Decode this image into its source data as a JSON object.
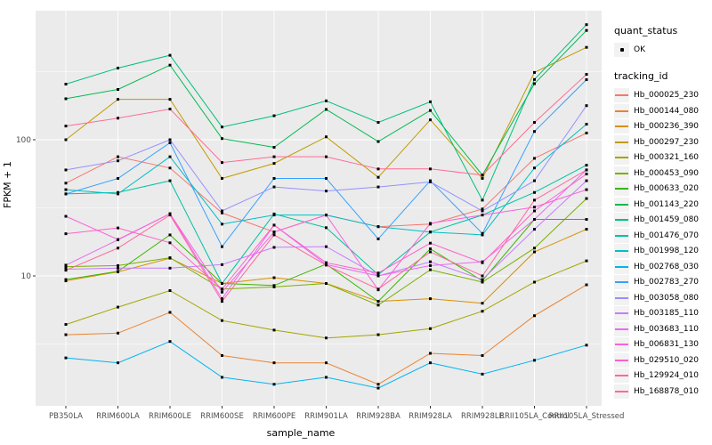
{
  "theme": {
    "panel_bg": "#EBEBEB",
    "grid_color": "#FFFFFF",
    "tick_text_color": "#4D4D4D",
    "axis_title_color": "#000000",
    "marker_color": "#000000",
    "legend_key_bg": "#F2F2F2"
  },
  "legend": {
    "quant_status_title": "quant_status",
    "quant_status_items": [
      {
        "label": "OK"
      }
    ],
    "tracking_id_title": "tracking_id"
  },
  "chart_data": {
    "type": "line",
    "title": "",
    "xlabel": "sample_name",
    "ylabel": "FPKM + 1",
    "y_scale": "log10",
    "y_tick_labels": [
      "100",
      "10"
    ],
    "y_tick_values": [
      100,
      10
    ],
    "ylim": [
      1.2,
      900
    ],
    "grid": "on",
    "legend_position": "right",
    "point_marker": "black square (quant_status = OK)",
    "categories": [
      "PB350LA",
      "RRIM600LA",
      "RRIM600LE",
      "RRIM600SE",
      "RRIM600PE",
      "RRIM901LA",
      "RRIM928BA",
      "RRIM928LA",
      "RRIM928LE",
      "RRII105LA_Control",
      "RRII105LA_Stressed"
    ],
    "series": [
      {
        "name": "Hb_000025_230",
        "color": "#F8766D",
        "values": [
          48,
          75,
          62,
          29,
          21,
          28,
          23,
          24,
          31,
          73,
          112
        ]
      },
      {
        "name": "Hb_000144_080",
        "color": "#EA8331",
        "values": [
          3.7,
          3.8,
          5.4,
          2.6,
          2.3,
          2.3,
          1.6,
          2.7,
          2.6,
          5.1,
          8.6
        ]
      },
      {
        "name": "Hb_000236_390",
        "color": "#D89000",
        "values": [
          9.2,
          10.7,
          13.5,
          8.8,
          9.7,
          8.8,
          6.5,
          6.8,
          6.3,
          15,
          22
        ]
      },
      {
        "name": "Hb_000297_230",
        "color": "#C09B00",
        "values": [
          100,
          198,
          198,
          52,
          67,
          105,
          53,
          140,
          52,
          312,
          477
        ]
      },
      {
        "name": "Hb_000321_160",
        "color": "#A3A500",
        "values": [
          4.4,
          5.9,
          7.8,
          4.7,
          4.0,
          3.5,
          3.7,
          4.1,
          5.5,
          9.0,
          12.9
        ]
      },
      {
        "name": "Hb_000453_090",
        "color": "#7CAE00",
        "values": [
          11.7,
          11.9,
          13.6,
          8.0,
          8.3,
          8.8,
          6.1,
          11.1,
          9.0,
          16,
          37
        ]
      },
      {
        "name": "Hb_000633_020",
        "color": "#39B600",
        "values": [
          9.4,
          10.8,
          20,
          8.8,
          8.5,
          12.2,
          6.5,
          15.8,
          9.2,
          26,
          26
        ]
      },
      {
        "name": "Hb_001143_220",
        "color": "#00BB4E",
        "values": [
          200,
          234,
          353,
          102,
          88,
          167,
          97,
          164,
          55,
          258,
          635
        ]
      },
      {
        "name": "Hb_001459_080",
        "color": "#00BF7D",
        "values": [
          256,
          336,
          417,
          124,
          150,
          193,
          134,
          190,
          36,
          277,
          700
        ]
      },
      {
        "name": "Hb_001476_070",
        "color": "#00C1A3",
        "values": [
          40,
          41,
          50,
          8.8,
          28.5,
          22.6,
          10.2,
          21,
          28,
          41,
          65
        ]
      },
      {
        "name": "Hb_001998_120",
        "color": "#00BFC4",
        "values": [
          43,
          40,
          75,
          24,
          28,
          28,
          23,
          21,
          20,
          62,
          130
        ]
      },
      {
        "name": "Hb_002768_030",
        "color": "#00B4F0",
        "values": [
          2.5,
          2.3,
          3.3,
          1.8,
          1.6,
          1.8,
          1.5,
          2.3,
          1.9,
          2.4,
          3.1
        ]
      },
      {
        "name": "Hb_002783_270",
        "color": "#35A2FF",
        "values": [
          40,
          52,
          95,
          16.4,
          52,
          52,
          18.7,
          50,
          20.5,
          115,
          276
        ]
      },
      {
        "name": "Hb_003058_080",
        "color": "#9590FF",
        "values": [
          60,
          70,
          100,
          30,
          45,
          42,
          45,
          49,
          30,
          50,
          178
        ]
      },
      {
        "name": "Hb_003185_110",
        "color": "#C77CFF",
        "values": [
          11.2,
          11.4,
          11.4,
          12.1,
          16.2,
          16.4,
          10,
          12.7,
          9.4,
          22,
          50
        ]
      },
      {
        "name": "Hb_003683_110",
        "color": "#E76BF3",
        "values": [
          12,
          18.4,
          28.6,
          6.8,
          23.6,
          12.1,
          10,
          11.9,
          12.7,
          26,
          60
        ]
      },
      {
        "name": "Hb_006831_130",
        "color": "#FA62DB",
        "values": [
          27.4,
          18.5,
          28.6,
          7.6,
          21,
          28,
          7.9,
          24.3,
          28,
          32,
          43
        ]
      },
      {
        "name": "Hb_029510_020",
        "color": "#FF61C9",
        "values": [
          20.4,
          22.5,
          17.5,
          8.0,
          23.6,
          12.5,
          10.5,
          17.4,
          12.5,
          30,
          56
        ]
      },
      {
        "name": "Hb_129924_010",
        "color": "#FF689E",
        "values": [
          11,
          16,
          28,
          6.5,
          20,
          12,
          8,
          15,
          10,
          36,
          60
        ]
      },
      {
        "name": "Hb_168878_010",
        "color": "#FF6B94",
        "values": [
          126,
          144,
          168,
          68,
          75,
          75,
          61,
          61,
          55,
          134,
          302
        ]
      }
    ]
  }
}
